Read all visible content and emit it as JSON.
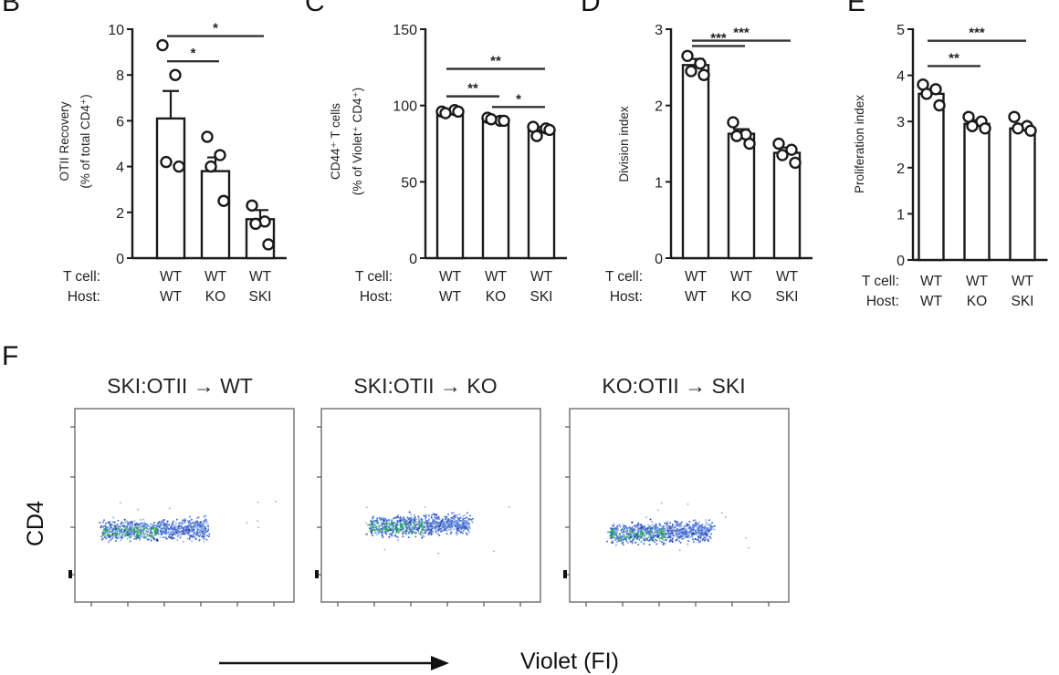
{
  "figure": {
    "panel_labels": [
      "B",
      "C",
      "D",
      "E",
      "F"
    ],
    "violet_axis_label": "Violet (FI)",
    "cd4_axis_label": "CD4"
  },
  "chart_data": [
    {
      "type": "bar",
      "panel": "B",
      "ylabel": "OTII Recovery",
      "ylabel2": "(% of total CD4⁺)",
      "ylim": [
        0,
        10
      ],
      "yticks": [
        "0",
        "2",
        "4",
        "6",
        "8",
        "10"
      ],
      "row_labels": [
        "T cell:",
        "Host:"
      ],
      "categories": [
        {
          "tcell": "WT",
          "host": "WT"
        },
        {
          "tcell": "WT",
          "host": "KO"
        },
        {
          "tcell": "WT",
          "host": "SKI"
        }
      ],
      "values": [
        6.1,
        3.8,
        1.7
      ],
      "errors": [
        1.2,
        0.6,
        0.4
      ],
      "points": [
        [
          9.3,
          8.0,
          4.2,
          4.0
        ],
        [
          5.3,
          4.5,
          4.0,
          2.5
        ],
        [
          2.3,
          1.6,
          1.5,
          0.6
        ]
      ],
      "significance": [
        {
          "from": 0,
          "to": 2,
          "y": 9.7,
          "label": "*"
        },
        {
          "from": 0,
          "to": 1,
          "y": 8.6,
          "label": "*"
        }
      ]
    },
    {
      "type": "bar",
      "panel": "C",
      "ylabel": "CD44⁺ T cells",
      "ylabel2": "(% of Violet⁺ CD4⁺)",
      "ylim": [
        0,
        150
      ],
      "yticks": [
        "0",
        "50",
        "100",
        "150"
      ],
      "row_labels": [
        "T cell:",
        "Host:"
      ],
      "categories": [
        {
          "tcell": "WT",
          "host": "WT"
        },
        {
          "tcell": "WT",
          "host": "KO"
        },
        {
          "tcell": "WT",
          "host": "SKI"
        }
      ],
      "values": [
        96,
        91,
        84
      ],
      "errors": [
        1.0,
        1.2,
        2.0
      ],
      "points": [
        [
          96,
          97,
          95,
          96
        ],
        [
          92,
          90,
          91,
          90
        ],
        [
          86,
          85,
          80,
          84
        ]
      ],
      "significance": [
        {
          "from": 0,
          "to": 2,
          "y": 124,
          "label": "**"
        },
        {
          "from": 0,
          "to": 1,
          "y": 106,
          "label": "**"
        },
        {
          "from": 1,
          "to": 2,
          "y": 99,
          "label": "*"
        }
      ]
    },
    {
      "type": "bar",
      "panel": "D",
      "ylabel": "Division index",
      "ylabel2": "",
      "ylim": [
        0,
        3
      ],
      "yticks": [
        "0",
        "1",
        "2",
        "3"
      ],
      "row_labels": [
        "T cell:",
        "Host:"
      ],
      "categories": [
        {
          "tcell": "WT",
          "host": "WT"
        },
        {
          "tcell": "WT",
          "host": "KO"
        },
        {
          "tcell": "WT",
          "host": "SKI"
        }
      ],
      "values": [
        2.53,
        1.63,
        1.38
      ],
      "errors": [
        0.08,
        0.06,
        0.07
      ],
      "points": [
        [
          2.65,
          2.55,
          2.45,
          2.4
        ],
        [
          1.78,
          1.62,
          1.6,
          1.5
        ],
        [
          1.5,
          1.42,
          1.35,
          1.25
        ]
      ],
      "significance": [
        {
          "from": 0,
          "to": 2,
          "y": 2.85,
          "label": "***"
        },
        {
          "from": 0,
          "to": 1,
          "y": 2.78,
          "label": "***"
        }
      ]
    },
    {
      "type": "bar",
      "panel": "E",
      "ylabel": "Proliferation index",
      "ylabel2": "",
      "ylim": [
        0,
        5
      ],
      "yticks": [
        "0",
        "1",
        "2",
        "3",
        "4",
        "5"
      ],
      "row_labels": [
        "T cell:",
        "Host:"
      ],
      "categories": [
        {
          "tcell": "WT",
          "host": "WT"
        },
        {
          "tcell": "WT",
          "host": "KO"
        },
        {
          "tcell": "WT",
          "host": "SKI"
        }
      ],
      "values": [
        3.6,
        2.95,
        2.85
      ],
      "errors": [
        0.1,
        0.08,
        0.07
      ],
      "points": [
        [
          3.8,
          3.7,
          3.6,
          3.35
        ],
        [
          3.1,
          3.0,
          2.9,
          2.85
        ],
        [
          3.1,
          2.9,
          2.85,
          2.8
        ]
      ],
      "significance": [
        {
          "from": 0,
          "to": 2,
          "y": 4.75,
          "label": "***"
        },
        {
          "from": 0,
          "to": 1,
          "y": 4.2,
          "label": "**"
        }
      ]
    },
    {
      "type": "scatter",
      "panel": "F",
      "plots": [
        {
          "title": "SKI:OTII → WT"
        },
        {
          "title": "SKI:OTII → KO"
        },
        {
          "title": "KO:OTII → SKI"
        }
      ],
      "xlabel": "Violet (FI)",
      "ylabel": "CD4"
    }
  ]
}
